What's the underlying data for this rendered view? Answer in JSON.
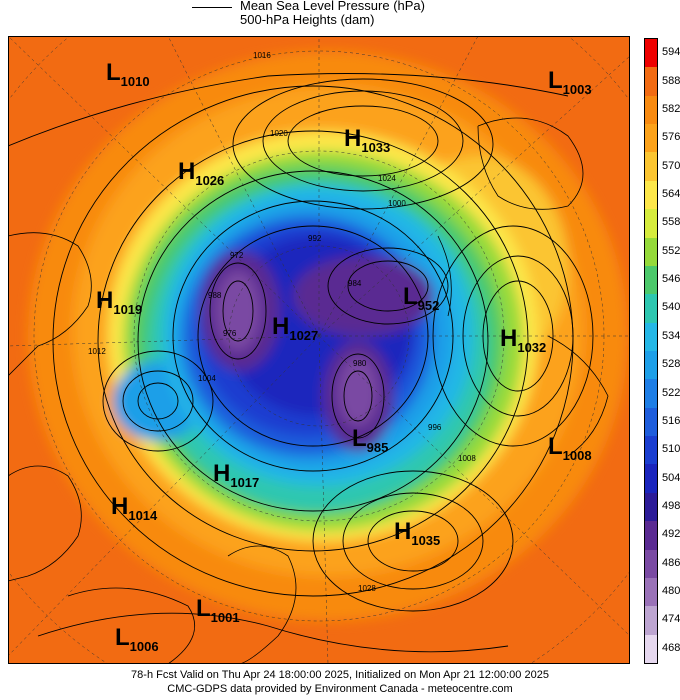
{
  "legend": {
    "mslp_label": "Mean Sea Level Pressure (hPa)",
    "heights_label": "500-hPa Heights (dam)"
  },
  "colorbar": {
    "labels": [
      "594",
      "588",
      "582",
      "576",
      "570",
      "564",
      "558",
      "552",
      "546",
      "540",
      "534",
      "528",
      "522",
      "516",
      "510",
      "504",
      "498",
      "492",
      "486",
      "480",
      "474",
      "468"
    ],
    "colors": [
      "#ee0000",
      "#f26b12",
      "#f88a10",
      "#fca21a",
      "#fbc531",
      "#fde74a",
      "#d6ec3e",
      "#95da3a",
      "#4cc96b",
      "#2dc7b0",
      "#24b7e6",
      "#1d9fe8",
      "#1e7ee6",
      "#1e5ddc",
      "#1a3ed0",
      "#1a25bd",
      "#2c1b98",
      "#5a2a92",
      "#7a4aa3",
      "#9a72b8",
      "#bda5d1",
      "#e6d8ef"
    ]
  },
  "centers": [
    {
      "type": "L",
      "value": "1010"
    },
    {
      "type": "L",
      "value": "1003"
    },
    {
      "type": "H",
      "value": "1033"
    },
    {
      "type": "H",
      "value": "1026"
    },
    {
      "type": "H",
      "value": "1019"
    },
    {
      "type": "H",
      "value": "1027"
    },
    {
      "type": "L",
      "value": "952"
    },
    {
      "type": "H",
      "value": "1032"
    },
    {
      "type": "L",
      "value": "985"
    },
    {
      "type": "L",
      "value": "1008"
    },
    {
      "type": "H",
      "value": "1017"
    },
    {
      "type": "H",
      "value": "1014"
    },
    {
      "type": "H",
      "value": "1035"
    },
    {
      "type": "L",
      "value": "1001"
    },
    {
      "type": "L",
      "value": "1006"
    }
  ],
  "isobar_labels": [
    "1016",
    "1020",
    "1024",
    "1028",
    "1004",
    "1000",
    "1008",
    "1012",
    "996",
    "992",
    "988",
    "984",
    "980",
    "976",
    "972"
  ],
  "footer": {
    "line1": "78-h Fcst Valid on Thu Apr 24 18:00:00 2025, Initialized on Mon Apr 21 12:00:00 2025",
    "line2": "CMC-GDPS data provided by Environment Canada - meteocentre.com"
  }
}
